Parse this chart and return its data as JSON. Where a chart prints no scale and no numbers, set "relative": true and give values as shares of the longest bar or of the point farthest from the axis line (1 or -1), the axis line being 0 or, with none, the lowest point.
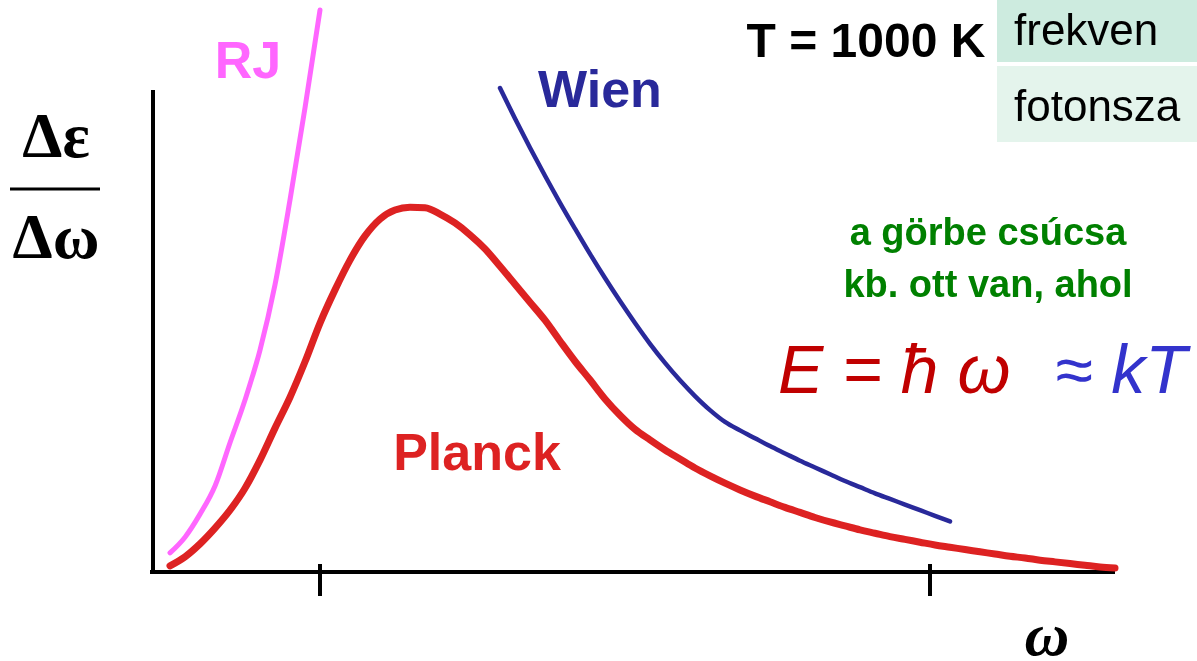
{
  "chart_data": {
    "type": "line",
    "relative": true,
    "categories": [
      null,
      null,
      null,
      null,
      null,
      null,
      null,
      null,
      null,
      null,
      null,
      null,
      null,
      null,
      null,
      null,
      null,
      null,
      null,
      null,
      null,
      null,
      null,
      null,
      null,
      null,
      null,
      null,
      null,
      null,
      null,
      null,
      null,
      null,
      null,
      null,
      null,
      null,
      null,
      null,
      null,
      null,
      null,
      null,
      null,
      null,
      null,
      null,
      null,
      null,
      null,
      null,
      null,
      null,
      null,
      null,
      null,
      null,
      null,
      null,
      null,
      null,
      null,
      null
    ],
    "series": [
      {
        "name": "RJ",
        "color": "#ff66ff",
        "values": [
          0.034,
          0.062,
          0.103,
          0.153,
          0.23,
          0.306,
          0.395,
          0.511,
          0.662,
          0.826,
          1.0,
          null,
          null,
          null,
          null,
          null,
          null,
          null,
          null,
          null,
          null,
          null,
          null,
          null,
          null,
          null,
          null,
          null,
          null,
          null,
          null,
          null,
          null,
          null,
          null,
          null,
          null,
          null,
          null,
          null,
          null,
          null,
          null,
          null,
          null,
          null,
          null,
          null,
          null,
          null,
          null,
          null,
          null,
          null,
          null,
          null,
          null,
          null,
          null,
          null,
          null,
          null,
          null,
          null
        ]
      },
      {
        "name": "Wien",
        "color": "#29299a",
        "values": [
          null,
          null,
          null,
          null,
          null,
          null,
          null,
          null,
          null,
          null,
          null,
          null,
          null,
          null,
          null,
          null,
          null,
          null,
          null,
          null,
          null,
          null,
          0.861,
          0.807,
          0.755,
          0.705,
          0.657,
          0.611,
          0.566,
          0.523,
          0.482,
          0.443,
          0.406,
          0.372,
          0.341,
          0.313,
          0.288,
          0.267,
          0.252,
          0.238,
          0.224,
          0.211,
          0.198,
          0.186,
          0.174,
          0.162,
          0.151,
          0.14,
          0.13,
          0.12,
          0.11,
          0.1,
          0.09,
          null,
          null,
          null,
          null,
          null,
          null,
          null,
          null,
          null,
          null,
          null
        ]
      },
      {
        "name": "Planck",
        "color": "#dd2222",
        "values": [
          0.011,
          0.027,
          0.05,
          0.078,
          0.11,
          0.149,
          0.199,
          0.256,
          0.311,
          0.374,
          0.443,
          0.502,
          0.555,
          0.598,
          0.628,
          0.644,
          0.649,
          0.648,
          0.637,
          0.621,
          0.6,
          0.575,
          0.544,
          0.512,
          0.48,
          0.448,
          0.411,
          0.375,
          0.342,
          0.308,
          0.279,
          0.254,
          0.235,
          0.217,
          0.201,
          0.185,
          0.171,
          0.158,
          0.146,
          0.135,
          0.125,
          0.115,
          0.106,
          0.097,
          0.089,
          0.082,
          0.075,
          0.069,
          0.063,
          0.058,
          0.053,
          0.048,
          0.044,
          0.04,
          0.036,
          0.032,
          0.028,
          0.025,
          0.021,
          0.018,
          0.015,
          0.012,
          0.009,
          0.007
        ]
      }
    ],
    "ylabel": "Δε\nΔω",
    "xlabel": "ω",
    "annotations": [
      "T = 1000 K",
      "frekven",
      "fotonsza",
      "a görbe csúcsa\nkb. ott van, ahol",
      "E = ħ ω",
      "≈ kT"
    ]
  }
}
